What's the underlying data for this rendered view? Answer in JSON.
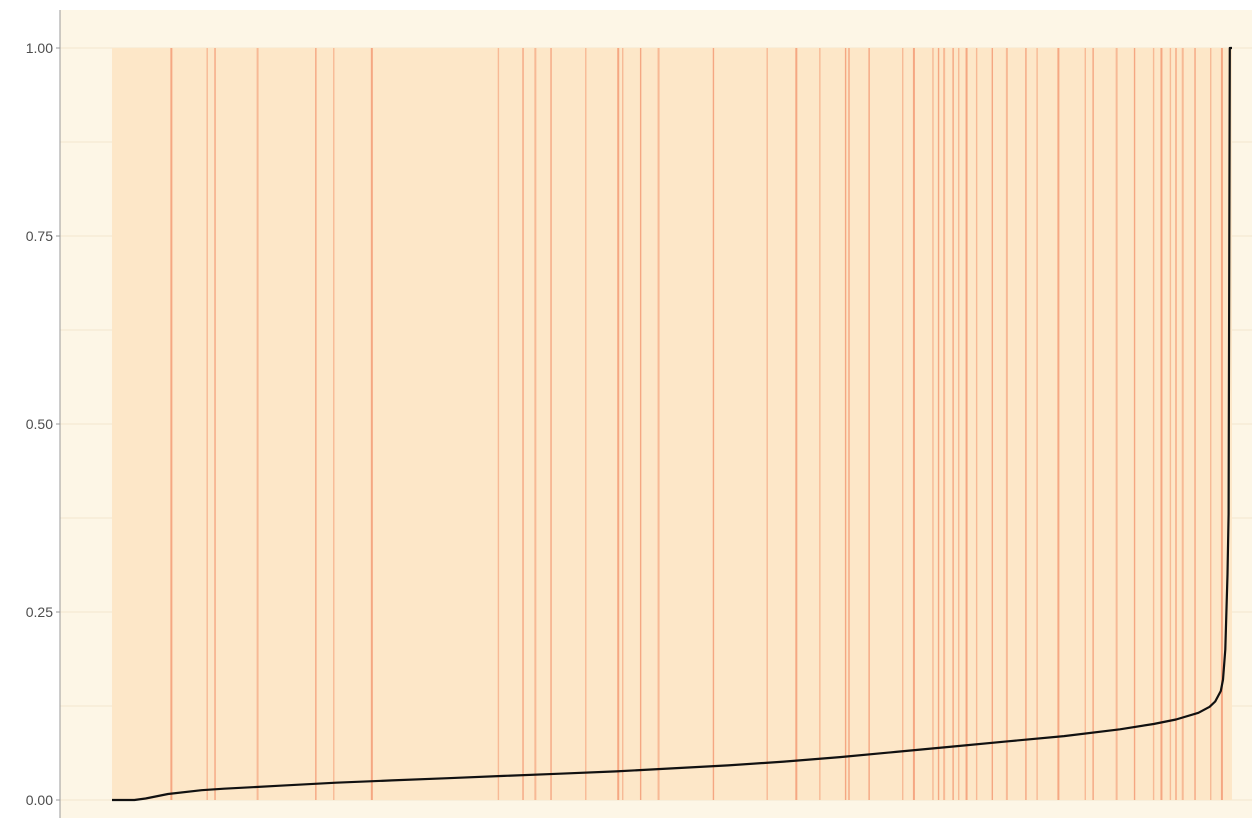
{
  "chart_data": {
    "type": "line",
    "title": "",
    "xlabel": "",
    "ylabel": "",
    "ylim": [
      0,
      1
    ],
    "xlim": [
      0,
      1
    ],
    "y_ticks": [
      {
        "value": 0,
        "label": "0.00"
      },
      {
        "value": 0.25,
        "label": "0.25"
      },
      {
        "value": 0.5,
        "label": "0.50"
      },
      {
        "value": 0.75,
        "label": "0.75"
      },
      {
        "value": 1,
        "label": "1.00"
      }
    ],
    "grid": true,
    "legend": "none",
    "colors": {
      "panel_background": "#fdf6e6",
      "band_background": "#fde7c8",
      "event_line": "#f4a07a",
      "curve": "#111111",
      "gridline": "#f2e6cf",
      "axis": "#9a9a9a"
    },
    "series": [
      {
        "x": [
          0.0,
          0.02,
          0.03,
          0.05,
          0.08,
          0.1,
          0.15,
          0.2,
          0.25,
          0.3,
          0.35,
          0.4,
          0.45,
          0.5,
          0.55,
          0.6,
          0.65,
          0.7,
          0.75,
          0.8,
          0.85,
          0.9,
          0.93,
          0.95,
          0.97,
          0.98,
          0.985,
          0.99,
          0.992,
          0.994,
          0.996,
          0.997,
          0.998,
          1.0
        ],
        "y": [
          0.0,
          0.0,
          0.002,
          0.008,
          0.013,
          0.015,
          0.019,
          0.023,
          0.026,
          0.029,
          0.032,
          0.035,
          0.038,
          0.042,
          0.046,
          0.051,
          0.057,
          0.064,
          0.071,
          0.078,
          0.085,
          0.094,
          0.101,
          0.107,
          0.116,
          0.124,
          0.131,
          0.145,
          0.16,
          0.2,
          0.3,
          0.38,
          1.0,
          1.0
        ]
      }
    ],
    "event_lines_x": [
      0.053,
      0.085,
      0.092,
      0.13,
      0.182,
      0.198,
      0.232,
      0.345,
      0.367,
      0.378,
      0.392,
      0.423,
      0.452,
      0.456,
      0.472,
      0.488,
      0.537,
      0.585,
      0.611,
      0.632,
      0.655,
      0.658,
      0.676,
      0.706,
      0.716,
      0.733,
      0.738,
      0.743,
      0.751,
      0.756,
      0.763,
      0.772,
      0.786,
      0.799,
      0.816,
      0.826,
      0.845,
      0.869,
      0.876,
      0.897,
      0.913,
      0.93,
      0.937,
      0.945,
      0.95,
      0.956,
      0.967,
      0.981,
      0.991
    ]
  }
}
